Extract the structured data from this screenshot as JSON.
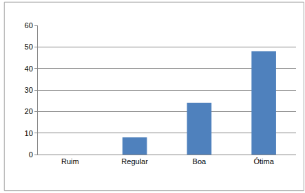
{
  "chart_data": {
    "type": "bar",
    "categories": [
      "Ruim",
      "Regular",
      "Boa",
      "Ótima"
    ],
    "values": [
      0,
      8,
      24,
      48
    ],
    "color": "#4f81bd",
    "ylim": [
      0,
      60
    ],
    "yticks": [
      0,
      10,
      20,
      30,
      40,
      50,
      60
    ],
    "grid": true
  }
}
